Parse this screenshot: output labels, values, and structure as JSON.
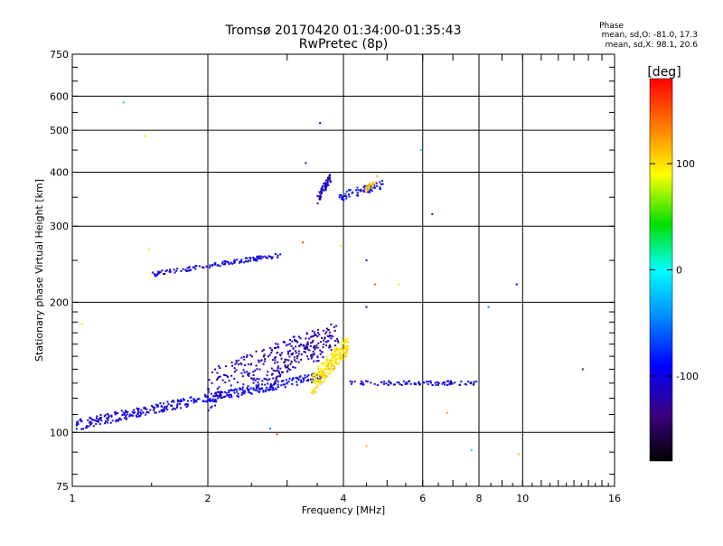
{
  "header": {
    "title_line1": "Tromsø 20170420 01:34:00-01:35:43",
    "title_line2": "RwPretec (8p)"
  },
  "stats": {
    "heading": "Phase",
    "line1": "mean, sd,O: -81.0, 17.3",
    "line2": "mean, sd,X:  98.1, 20.6"
  },
  "colorbar": {
    "unit": "[deg]",
    "tick_values": [
      100,
      0,
      -100
    ],
    "tick_labels": [
      "100",
      "0",
      "-100"
    ],
    "range": [
      -180,
      180
    ]
  },
  "chart_data": {
    "type": "scatter",
    "title": "Tromsø 20170420 01:34:00-01:35:43",
    "subtitle": "RwPretec (8p)",
    "xlabel": "Frequency [MHz]",
    "ylabel": "Stationary phase Virtual Height [km]",
    "xscale": "log",
    "yscale": "log",
    "xlim": [
      1,
      16
    ],
    "ylim": [
      75,
      750
    ],
    "xticks": [
      1,
      2,
      4,
      6,
      8,
      10,
      16
    ],
    "yticks": [
      75,
      100,
      200,
      300,
      400,
      500,
      600,
      750
    ],
    "grid": true,
    "clusters": [
      {
        "name": "E-region trace (blue)",
        "phase": -100,
        "x0": 1.02,
        "x1": 2.2,
        "h0": 104,
        "h1": 122,
        "n": 240,
        "dh": 3
      },
      {
        "name": "E-region trace upper (blue)",
        "phase": -95,
        "x0": 2.2,
        "x1": 3.6,
        "h0": 122,
        "h1": 135,
        "n": 140,
        "dh": 3
      },
      {
        "name": "scatter cloud (blue)",
        "phase": -110,
        "x0": 2.0,
        "x1": 3.8,
        "h0": 125,
        "h1": 165,
        "n": 260,
        "dh": 14
      },
      {
        "name": "scatter cloud (dark blue)",
        "phase": -130,
        "x0": 2.8,
        "x1": 3.9,
        "h0": 140,
        "h1": 170,
        "n": 80,
        "dh": 10
      },
      {
        "name": "X-mode cluster (yellow)",
        "phase": 98,
        "x0": 3.4,
        "x1": 4.1,
        "h0": 128,
        "h1": 160,
        "n": 220,
        "dh": 8
      },
      {
        "name": "flat trace (blue)",
        "phase": -105,
        "x0": 4.1,
        "x1": 7.9,
        "h0": 130,
        "h1": 130,
        "n": 90,
        "dh": 1.5
      },
      {
        "name": "F-region trace (blue)",
        "phase": -100,
        "x0": 1.5,
        "x1": 2.9,
        "h0": 232,
        "h1": 257,
        "n": 120,
        "dh": 3
      },
      {
        "name": "F cusp (blue)",
        "phase": -110,
        "x0": 3.5,
        "x1": 3.75,
        "h0": 345,
        "h1": 390,
        "n": 60,
        "dh": 10
      },
      {
        "name": "F upper (blue)",
        "phase": -90,
        "x0": 3.9,
        "x1": 4.9,
        "h0": 350,
        "h1": 375,
        "n": 70,
        "dh": 8
      },
      {
        "name": "F upper (yellow/orange)",
        "phase": 110,
        "x0": 4.45,
        "x1": 4.75,
        "h0": 360,
        "h1": 385,
        "n": 25,
        "dh": 8
      }
    ],
    "isolated_points": [
      {
        "x": 1.3,
        "y": 580,
        "phase": -20
      },
      {
        "x": 1.45,
        "y": 485,
        "phase": 100
      },
      {
        "x": 1.48,
        "y": 265,
        "phase": 100
      },
      {
        "x": 3.55,
        "y": 520,
        "phase": -110
      },
      {
        "x": 3.3,
        "y": 420,
        "phase": -120
      },
      {
        "x": 3.95,
        "y": 270,
        "phase": 100
      },
      {
        "x": 5.95,
        "y": 450,
        "phase": 0
      },
      {
        "x": 6.3,
        "y": 320,
        "phase": -110
      },
      {
        "x": 4.5,
        "y": 250,
        "phase": -110
      },
      {
        "x": 4.7,
        "y": 220,
        "phase": 150
      },
      {
        "x": 5.3,
        "y": 220,
        "phase": 100
      },
      {
        "x": 4.5,
        "y": 195,
        "phase": -150
      },
      {
        "x": 8.4,
        "y": 195,
        "phase": -50
      },
      {
        "x": 9.7,
        "y": 220,
        "phase": -100
      },
      {
        "x": 13.6,
        "y": 140,
        "phase": -80
      },
      {
        "x": 2.85,
        "y": 99,
        "phase": 160
      },
      {
        "x": 4.5,
        "y": 93,
        "phase": 120
      },
      {
        "x": 7.7,
        "y": 91,
        "phase": -10
      },
      {
        "x": 9.8,
        "y": 89,
        "phase": 110
      },
      {
        "x": 6.8,
        "y": 111,
        "phase": 120
      },
      {
        "x": 1.05,
        "y": 178,
        "phase": 100
      },
      {
        "x": 3.25,
        "y": 275,
        "phase": 160
      },
      {
        "x": 2.75,
        "y": 102,
        "phase": -50
      }
    ]
  }
}
